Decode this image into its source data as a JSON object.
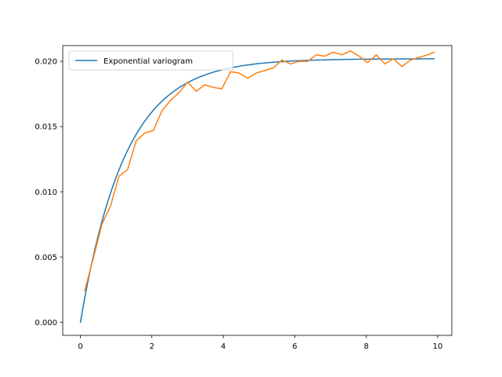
{
  "chart_data": {
    "type": "line",
    "title": "",
    "xlabel": "",
    "ylabel": "",
    "xlim": [
      -0.495,
      10.395
    ],
    "ylim": [
      -0.00101,
      0.02121
    ],
    "xticks": [
      0,
      2,
      4,
      6,
      8,
      10
    ],
    "xtick_labels": [
      "0",
      "2",
      "4",
      "6",
      "8",
      "10"
    ],
    "yticks": [
      0.0,
      0.005,
      0.01,
      0.015,
      0.02
    ],
    "ytick_labels": [
      "0.000",
      "0.005",
      "0.010",
      "0.015",
      "0.020"
    ],
    "grid": false,
    "legend": {
      "placement": "upper-left",
      "entries": [
        "Exponential variogram"
      ]
    },
    "series": [
      {
        "name": "Exponential variogram",
        "color": "#1f77b4",
        "model": {
          "type": "exponential",
          "sill": 0.0202,
          "range": 1.25,
          "x_min": 0.0,
          "x_max": 9.9,
          "points": 100
        }
      },
      {
        "color": "#ff7f0e",
        "x": [
          0.12,
          0.36,
          0.6,
          0.84,
          1.08,
          1.32,
          1.56,
          1.8,
          2.04,
          2.28,
          2.52,
          2.76,
          3.0,
          3.24,
          3.48,
          3.72,
          3.96,
          4.2,
          4.44,
          4.68,
          4.92,
          5.16,
          5.4,
          5.64,
          5.88,
          6.12,
          6.36,
          6.6,
          6.84,
          7.08,
          7.32,
          7.56,
          7.8,
          8.04,
          8.28,
          8.52,
          8.76,
          9.0,
          9.24,
          9.48,
          9.72,
          9.9
        ],
        "values": [
          0.0024,
          0.0049,
          0.0075,
          0.0089,
          0.0112,
          0.0117,
          0.0139,
          0.0145,
          0.0147,
          0.0162,
          0.017,
          0.0176,
          0.0184,
          0.0177,
          0.0182,
          0.018,
          0.0179,
          0.0192,
          0.0191,
          0.0187,
          0.0191,
          0.0193,
          0.0195,
          0.0201,
          0.0198,
          0.02,
          0.02,
          0.0205,
          0.0204,
          0.0207,
          0.0205,
          0.0208,
          0.0204,
          0.0199,
          0.0205,
          0.0198,
          0.0202,
          0.0196,
          0.0201,
          0.0203,
          0.0205,
          0.0207
        ]
      }
    ]
  }
}
